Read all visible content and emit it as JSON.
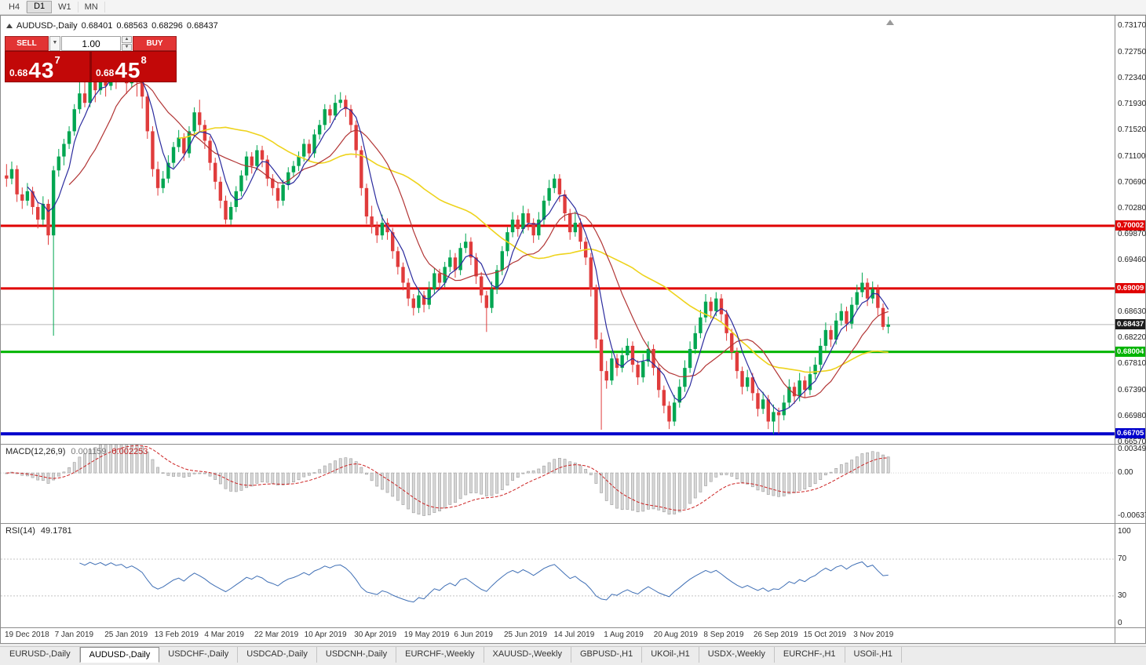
{
  "toolbar": {
    "timeframes": [
      {
        "label": "H4",
        "active": false
      },
      {
        "label": "D1",
        "active": true
      },
      {
        "label": "W1",
        "active": false
      },
      {
        "label": "MN",
        "active": false
      }
    ]
  },
  "symbol_info": {
    "title": "AUDUSD-,Daily",
    "open": "0.68401",
    "high": "0.68563",
    "low": "0.68296",
    "close": "0.68437"
  },
  "trade_panel": {
    "sell_label": "SELL",
    "buy_label": "BUY",
    "volume": "1.00",
    "sell_price": {
      "prefix": "0.68",
      "big": "43",
      "sup": "7"
    },
    "buy_price": {
      "prefix": "0.68",
      "big": "45",
      "sup": "8"
    }
  },
  "indicators": {
    "macd": {
      "name": "MACD(12,26,9)",
      "value": "0.001159",
      "signal": "0.002253",
      "scale_labels": [
        "0.00349",
        "0.00",
        "-0.00637"
      ],
      "scale_values": [
        0.00349,
        0,
        -0.00637
      ],
      "histogram_color": "#d8d8d8",
      "histogram_border": "#9c9c9c",
      "signal_color": "#cc2222"
    },
    "rsi": {
      "name": "RSI(14)",
      "value": "49.1781",
      "period": 14,
      "levels": [
        "100",
        "70",
        "30",
        "0"
      ],
      "level_values": [
        100,
        70,
        30,
        0
      ],
      "line_color": "#3f6fb5"
    }
  },
  "chart_data": {
    "type": "candlestick",
    "symbol": "AUDUSD-",
    "timeframe": "Daily",
    "colors": {
      "up": "#00a651",
      "down": "#e03c3c"
    },
    "y_axis": {
      "max": 0.73332,
      "min": 0.66546,
      "labels": [
        "0.73170",
        "0.72750",
        "0.72340",
        "0.71930",
        "0.71520",
        "0.71100",
        "0.70690",
        "0.70280",
        "0.69870",
        "0.69460",
        "0.68630",
        "0.68220",
        "0.67810",
        "0.67390",
        "0.66980",
        "0.66570"
      ]
    },
    "x_labels": [
      "19 Dec 2018",
      "7 Jan 2019",
      "25 Jan 2019",
      "13 Feb 2019",
      "4 Mar 2019",
      "22 Mar 2019",
      "10 Apr 2019",
      "30 Apr 2019",
      "19 May 2019",
      "6 Jun 2019",
      "25 Jun 2019",
      "14 Jul 2019",
      "1 Aug 2019",
      "20 Aug 2019",
      "8 Sep 2019",
      "26 Sep 2019",
      "15 Oct 2019",
      "3 Nov 2019"
    ],
    "moving_averages": [
      {
        "period": 34,
        "color": "#eed31c",
        "width": 1.6
      },
      {
        "period": 13,
        "color": "#b23535",
        "width": 1.2
      },
      {
        "period": 5,
        "color": "#2b2b9e",
        "width": 1.2
      }
    ],
    "hlines": [
      {
        "price": 0.70002,
        "label": "0.70002",
        "color": "#e00000",
        "thickness": 3
      },
      {
        "price": 0.69009,
        "label": "0.69009",
        "color": "#e00000",
        "thickness": 3
      },
      {
        "price": 0.68004,
        "label": "0.68004",
        "color": "#00b400",
        "thickness": 3
      },
      {
        "price": 0.66705,
        "label": "0.66705",
        "color": "#0000cc",
        "thickness": 4
      }
    ],
    "current_price": {
      "value": 0.68437,
      "label": "0.68437",
      "tag_color": "#1c1c1c",
      "line_color": "#b5b5b5"
    },
    "macd_scale": {
      "max": 0.004186,
      "min": -0.007414
    },
    "rsi_scale": {
      "max": 108.5,
      "min": -4.3
    },
    "candles": [
      [
        0.708,
        0.7098,
        0.7062,
        0.7075
      ],
      [
        0.7075,
        0.7102,
        0.7066,
        0.709
      ],
      [
        0.709,
        0.7096,
        0.7038,
        0.705
      ],
      [
        0.705,
        0.7061,
        0.7027,
        0.704
      ],
      [
        0.704,
        0.7068,
        0.7032,
        0.7055
      ],
      [
        0.7055,
        0.7062,
        0.7018,
        0.703
      ],
      [
        0.703,
        0.7038,
        0.6996,
        0.701
      ],
      [
        0.701,
        0.7047,
        0.7001,
        0.7035
      ],
      [
        0.7035,
        0.7042,
        0.697,
        0.6985
      ],
      [
        0.6985,
        0.7095,
        0.6826,
        0.7088
      ],
      [
        0.7088,
        0.7122,
        0.7078,
        0.711
      ],
      [
        0.711,
        0.7138,
        0.7096,
        0.713
      ],
      [
        0.713,
        0.7158,
        0.7122,
        0.715
      ],
      [
        0.715,
        0.7193,
        0.7143,
        0.7185
      ],
      [
        0.7185,
        0.7243,
        0.7178,
        0.721
      ],
      [
        0.721,
        0.7252,
        0.7188,
        0.7195
      ],
      [
        0.7195,
        0.7262,
        0.7188,
        0.723
      ],
      [
        0.723,
        0.7247,
        0.7196,
        0.7215
      ],
      [
        0.7215,
        0.7268,
        0.7208,
        0.724
      ],
      [
        0.724,
        0.7249,
        0.7205,
        0.7222
      ],
      [
        0.7222,
        0.727,
        0.7215,
        0.7252
      ],
      [
        0.7252,
        0.7259,
        0.7217,
        0.7235
      ],
      [
        0.7235,
        0.7266,
        0.7228,
        0.7248
      ],
      [
        0.7248,
        0.7256,
        0.7209,
        0.7226
      ],
      [
        0.7226,
        0.7263,
        0.7219,
        0.7245
      ],
      [
        0.7245,
        0.7252,
        0.7205,
        0.7228
      ],
      [
        0.7228,
        0.7235,
        0.7186,
        0.7205
      ],
      [
        0.7205,
        0.7212,
        0.7138,
        0.715
      ],
      [
        0.715,
        0.7158,
        0.7078,
        0.709
      ],
      [
        0.709,
        0.7102,
        0.7048,
        0.706
      ],
      [
        0.706,
        0.7087,
        0.7052,
        0.7075
      ],
      [
        0.7075,
        0.7112,
        0.7068,
        0.71
      ],
      [
        0.71,
        0.7133,
        0.7092,
        0.7125
      ],
      [
        0.7125,
        0.7152,
        0.7117,
        0.714
      ],
      [
        0.714,
        0.7147,
        0.7103,
        0.7115
      ],
      [
        0.7115,
        0.7158,
        0.7108,
        0.715
      ],
      [
        0.715,
        0.7188,
        0.7142,
        0.718
      ],
      [
        0.718,
        0.72,
        0.715,
        0.716
      ],
      [
        0.716,
        0.7168,
        0.7122,
        0.7135
      ],
      [
        0.7135,
        0.7142,
        0.7088,
        0.71
      ],
      [
        0.71,
        0.7108,
        0.7058,
        0.707
      ],
      [
        0.707,
        0.7078,
        0.7028,
        0.704
      ],
      [
        0.704,
        0.7048,
        0.7003,
        0.701
      ],
      [
        0.701,
        0.7038,
        0.7002,
        0.703
      ],
      [
        0.703,
        0.7063,
        0.7022,
        0.7055
      ],
      [
        0.7055,
        0.7088,
        0.7047,
        0.708
      ],
      [
        0.708,
        0.7118,
        0.7072,
        0.711
      ],
      [
        0.711,
        0.7117,
        0.7083,
        0.7095
      ],
      [
        0.7095,
        0.7128,
        0.7088,
        0.712
      ],
      [
        0.712,
        0.7127,
        0.7093,
        0.7105
      ],
      [
        0.7105,
        0.7112,
        0.7063,
        0.7075
      ],
      [
        0.7075,
        0.7082,
        0.7048,
        0.706
      ],
      [
        0.706,
        0.7068,
        0.7028,
        0.704
      ],
      [
        0.704,
        0.7073,
        0.7032,
        0.7065
      ],
      [
        0.7065,
        0.7093,
        0.7057,
        0.7085
      ],
      [
        0.7085,
        0.7103,
        0.7077,
        0.7095
      ],
      [
        0.7095,
        0.7118,
        0.7087,
        0.711
      ],
      [
        0.711,
        0.7138,
        0.7102,
        0.713
      ],
      [
        0.713,
        0.7137,
        0.7103,
        0.7115
      ],
      [
        0.7115,
        0.7153,
        0.7108,
        0.7145
      ],
      [
        0.7145,
        0.7168,
        0.7137,
        0.716
      ],
      [
        0.716,
        0.7193,
        0.7152,
        0.7185
      ],
      [
        0.7185,
        0.7192,
        0.7163,
        0.7175
      ],
      [
        0.7175,
        0.7208,
        0.7168,
        0.7195
      ],
      [
        0.7195,
        0.7212,
        0.7187,
        0.72
      ],
      [
        0.72,
        0.7207,
        0.7173,
        0.7185
      ],
      [
        0.7185,
        0.7192,
        0.7148,
        0.716
      ],
      [
        0.716,
        0.7167,
        0.7108,
        0.712
      ],
      [
        0.712,
        0.7127,
        0.7048,
        0.706
      ],
      [
        0.706,
        0.7067,
        0.7003,
        0.7015
      ],
      [
        0.7015,
        0.7032,
        0.6988,
        0.7
      ],
      [
        0.7,
        0.7007,
        0.6973,
        0.6985
      ],
      [
        0.6985,
        0.7018,
        0.6978,
        0.7005
      ],
      [
        0.7005,
        0.7012,
        0.6978,
        0.699
      ],
      [
        0.699,
        0.6997,
        0.6948,
        0.696
      ],
      [
        0.696,
        0.6967,
        0.6923,
        0.6935
      ],
      [
        0.6935,
        0.6942,
        0.6898,
        0.691
      ],
      [
        0.691,
        0.6917,
        0.6873,
        0.6885
      ],
      [
        0.6885,
        0.6892,
        0.6858,
        0.687
      ],
      [
        0.687,
        0.6902,
        0.6862,
        0.689
      ],
      [
        0.689,
        0.6897,
        0.6863,
        0.6875
      ],
      [
        0.6875,
        0.6912,
        0.6868,
        0.69
      ],
      [
        0.69,
        0.6933,
        0.6892,
        0.6925
      ],
      [
        0.6925,
        0.6932,
        0.6898,
        0.691
      ],
      [
        0.691,
        0.6943,
        0.6903,
        0.6935
      ],
      [
        0.6935,
        0.6962,
        0.6927,
        0.695
      ],
      [
        0.695,
        0.6957,
        0.6918,
        0.693
      ],
      [
        0.693,
        0.6973,
        0.6922,
        0.6965
      ],
      [
        0.6965,
        0.6988,
        0.6957,
        0.6975
      ],
      [
        0.6975,
        0.6982,
        0.6938,
        0.695
      ],
      [
        0.695,
        0.6957,
        0.6908,
        0.692
      ],
      [
        0.692,
        0.6927,
        0.6878,
        0.689
      ],
      [
        0.689,
        0.6897,
        0.6832,
        0.687
      ],
      [
        0.687,
        0.6912,
        0.6862,
        0.69
      ],
      [
        0.69,
        0.6938,
        0.6892,
        0.693
      ],
      [
        0.693,
        0.6968,
        0.6922,
        0.696
      ],
      [
        0.696,
        0.6998,
        0.6952,
        0.699
      ],
      [
        0.699,
        0.7022,
        0.6982,
        0.701
      ],
      [
        0.701,
        0.7017,
        0.6983,
        0.6995
      ],
      [
        0.6995,
        0.7032,
        0.6988,
        0.702
      ],
      [
        0.702,
        0.7027,
        0.6993,
        0.7005
      ],
      [
        0.7005,
        0.7012,
        0.6973,
        0.6985
      ],
      [
        0.6985,
        0.7022,
        0.6978,
        0.701
      ],
      [
        0.701,
        0.7048,
        0.7002,
        0.704
      ],
      [
        0.704,
        0.7073,
        0.7032,
        0.706
      ],
      [
        0.706,
        0.7082,
        0.7052,
        0.7075
      ],
      [
        0.7075,
        0.7082,
        0.7038,
        0.705
      ],
      [
        0.705,
        0.7057,
        0.7008,
        0.702
      ],
      [
        0.702,
        0.7027,
        0.6978,
        0.699
      ],
      [
        0.699,
        0.7023,
        0.6983,
        0.7005
      ],
      [
        0.7005,
        0.7012,
        0.6963,
        0.6975
      ],
      [
        0.6975,
        0.6982,
        0.6938,
        0.695
      ],
      [
        0.695,
        0.6957,
        0.6888,
        0.69
      ],
      [
        0.69,
        0.6907,
        0.6806,
        0.682
      ],
      [
        0.682,
        0.6831,
        0.6677,
        0.677
      ],
      [
        0.677,
        0.6786,
        0.6742,
        0.6755
      ],
      [
        0.6755,
        0.6802,
        0.6748,
        0.679
      ],
      [
        0.679,
        0.6797,
        0.6762,
        0.6775
      ],
      [
        0.6775,
        0.6807,
        0.6768,
        0.6795
      ],
      [
        0.6795,
        0.6822,
        0.6787,
        0.681
      ],
      [
        0.681,
        0.6817,
        0.6768,
        0.678
      ],
      [
        0.678,
        0.6787,
        0.6748,
        0.676
      ],
      [
        0.676,
        0.6797,
        0.6752,
        0.6785
      ],
      [
        0.6785,
        0.6817,
        0.6777,
        0.6805
      ],
      [
        0.6805,
        0.6812,
        0.6763,
        0.6775
      ],
      [
        0.6775,
        0.6782,
        0.6728,
        0.674
      ],
      [
        0.674,
        0.6747,
        0.6703,
        0.6715
      ],
      [
        0.6715,
        0.6722,
        0.6678,
        0.669
      ],
      [
        0.669,
        0.6732,
        0.6683,
        0.672
      ],
      [
        0.672,
        0.6757,
        0.6712,
        0.6745
      ],
      [
        0.6745,
        0.6787,
        0.6737,
        0.6775
      ],
      [
        0.6775,
        0.6817,
        0.6767,
        0.6805
      ],
      [
        0.6805,
        0.6842,
        0.6797,
        0.683
      ],
      [
        0.683,
        0.6867,
        0.6822,
        0.6855
      ],
      [
        0.6855,
        0.6892,
        0.6847,
        0.688
      ],
      [
        0.688,
        0.6887,
        0.6853,
        0.6865
      ],
      [
        0.6865,
        0.6895,
        0.6857,
        0.6885
      ],
      [
        0.6885,
        0.6892,
        0.6848,
        0.686
      ],
      [
        0.686,
        0.6867,
        0.6818,
        0.683
      ],
      [
        0.683,
        0.6837,
        0.6788,
        0.68
      ],
      [
        0.68,
        0.6807,
        0.6758,
        0.677
      ],
      [
        0.677,
        0.6777,
        0.6733,
        0.6745
      ],
      [
        0.6745,
        0.6772,
        0.6738,
        0.676
      ],
      [
        0.676,
        0.6767,
        0.6723,
        0.6735
      ],
      [
        0.6735,
        0.6742,
        0.6698,
        0.671
      ],
      [
        0.671,
        0.6737,
        0.6702,
        0.6725
      ],
      [
        0.6725,
        0.6732,
        0.6678,
        0.669
      ],
      [
        0.669,
        0.6717,
        0.667,
        0.6705
      ],
      [
        0.6705,
        0.6712,
        0.6671,
        0.67
      ],
      [
        0.67,
        0.6732,
        0.6692,
        0.672
      ],
      [
        0.672,
        0.6757,
        0.6712,
        0.6745
      ],
      [
        0.6745,
        0.6752,
        0.6718,
        0.673
      ],
      [
        0.673,
        0.6767,
        0.6722,
        0.6755
      ],
      [
        0.6755,
        0.6762,
        0.6728,
        0.674
      ],
      [
        0.674,
        0.6777,
        0.6732,
        0.6765
      ],
      [
        0.6765,
        0.6792,
        0.6757,
        0.678
      ],
      [
        0.678,
        0.6822,
        0.6772,
        0.681
      ],
      [
        0.681,
        0.6847,
        0.6802,
        0.6835
      ],
      [
        0.6835,
        0.6842,
        0.6808,
        0.682
      ],
      [
        0.682,
        0.6862,
        0.6812,
        0.685
      ],
      [
        0.685,
        0.6877,
        0.6842,
        0.6865
      ],
      [
        0.6865,
        0.6872,
        0.6833,
        0.6845
      ],
      [
        0.6845,
        0.6887,
        0.6837,
        0.6875
      ],
      [
        0.6875,
        0.6907,
        0.6867,
        0.6895
      ],
      [
        0.6895,
        0.6926,
        0.6887,
        0.691
      ],
      [
        0.691,
        0.6917,
        0.6873,
        0.6885
      ],
      [
        0.6885,
        0.6912,
        0.6877,
        0.69
      ],
      [
        0.69,
        0.6907,
        0.6858,
        0.687
      ],
      [
        0.687,
        0.6877,
        0.6835,
        0.684
      ],
      [
        0.68401,
        0.68563,
        0.68296,
        0.68437
      ]
    ]
  },
  "tabs": {
    "items": [
      {
        "label": "EURUSD-,Daily",
        "active": false
      },
      {
        "label": "AUDUSD-,Daily",
        "active": true
      },
      {
        "label": "USDCHF-,Daily",
        "active": false
      },
      {
        "label": "USDCAD-,Daily",
        "active": false
      },
      {
        "label": "USDCNH-,Daily",
        "active": false
      },
      {
        "label": "EURCHF-,Weekly",
        "active": false
      },
      {
        "label": "XAUUSD-,Weekly",
        "active": false
      },
      {
        "label": "GBPUSD-,H1",
        "active": false
      },
      {
        "label": "UKOil-,H1",
        "active": false
      },
      {
        "label": "USDX-,Weekly",
        "active": false
      },
      {
        "label": "EURCHF-,H1",
        "active": false
      },
      {
        "label": "USOil-,H1",
        "active": false
      }
    ]
  }
}
